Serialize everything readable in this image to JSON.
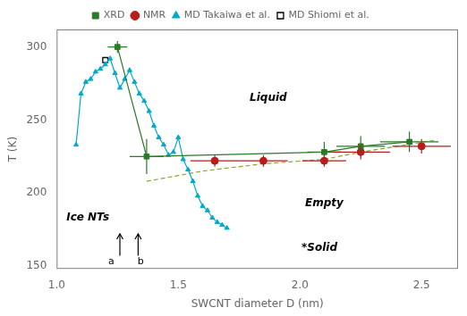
{
  "chart_data": {
    "type": "scatter",
    "xlabel": "SWCNT diameter D (nm)",
    "ylabel": "T (K)",
    "xlim": [
      1.0,
      2.65
    ],
    "ylim": [
      148,
      312
    ],
    "xticks": [
      {
        "value": 1.0,
        "label": "1.0"
      },
      1.5,
      {
        "value": 2.0,
        "label": "2.0"
      },
      2.5
    ],
    "yticks": [
      150,
      200,
      250,
      300
    ],
    "grid": false,
    "legend": "top",
    "series": [
      {
        "name": "XRD",
        "color": "#2a7a2a",
        "marker": "square",
        "line_style": "solid",
        "x": [
          1.25,
          1.37,
          2.1,
          2.25,
          2.45
        ],
        "values": [
          300,
          225,
          228,
          232,
          235
        ],
        "xerr": [
          0.04,
          0.07,
          0.07,
          0.1,
          0.12
        ],
        "yerr": [
          4,
          12,
          7,
          7,
          7
        ]
      },
      {
        "name": "NMR",
        "color": "#b81c1c",
        "marker": "circle",
        "line_style": "none",
        "x": [
          1.65,
          1.85,
          2.1,
          2.25,
          2.5
        ],
        "values": [
          222,
          222,
          222,
          228,
          232
        ],
        "xerr": [
          0.1,
          0.1,
          0.09,
          0.12,
          0.12
        ],
        "yerr": [
          4,
          4,
          4,
          5,
          5
        ]
      },
      {
        "name": "MD Takaiwa et al.",
        "color": "#00aacc",
        "marker": "triangle",
        "line_style": "solid",
        "x": [
          1.08,
          1.1,
          1.12,
          1.14,
          1.16,
          1.18,
          1.2,
          1.22,
          1.24,
          1.26,
          1.28,
          1.3,
          1.32,
          1.34,
          1.36,
          1.38,
          1.4,
          1.42,
          1.44,
          1.46,
          1.48,
          1.5,
          1.52,
          1.54,
          1.56,
          1.58,
          1.6,
          1.62,
          1.64,
          1.66,
          1.68,
          1.7
        ],
        "values": [
          233,
          268,
          276,
          278,
          283,
          285,
          288,
          292,
          282,
          272,
          278,
          284,
          276,
          268,
          263,
          256,
          246,
          238,
          233,
          226,
          228,
          238,
          223,
          216,
          208,
          198,
          191,
          188,
          183,
          180,
          178,
          176
        ]
      },
      {
        "name": "MD Shiomi et al.",
        "color": "#000000",
        "marker": "square_open",
        "line_style": "none",
        "x": [
          1.2
        ],
        "values": [
          291
        ]
      },
      {
        "color": "#88aa30",
        "line_style": "dashed",
        "x": [
          1.37,
          1.6,
          1.85,
          2.1,
          2.25,
          2.55
        ],
        "values": [
          208,
          215,
          220,
          223,
          228,
          236
        ]
      }
    ],
    "region_labels": [
      {
        "text": "Liquid",
        "x": 1.87,
        "y": 265
      },
      {
        "text": "Empty",
        "x": 2.1,
        "y": 193
      },
      {
        "text": "*Solid",
        "x": 2.08,
        "y": 162
      },
      {
        "text": "Ice NTs",
        "x": 1.04,
        "y": 183
      }
    ],
    "arrows": [
      {
        "x": 1.26,
        "y_start": 157,
        "y_end": 172,
        "label": {
          "text": "a",
          "x": 1.225,
          "y": 156
        }
      },
      {
        "x": 1.335,
        "y_start": 157,
        "y_end": 172,
        "label": {
          "text": "b",
          "x": 1.345,
          "y": 156
        }
      }
    ]
  }
}
